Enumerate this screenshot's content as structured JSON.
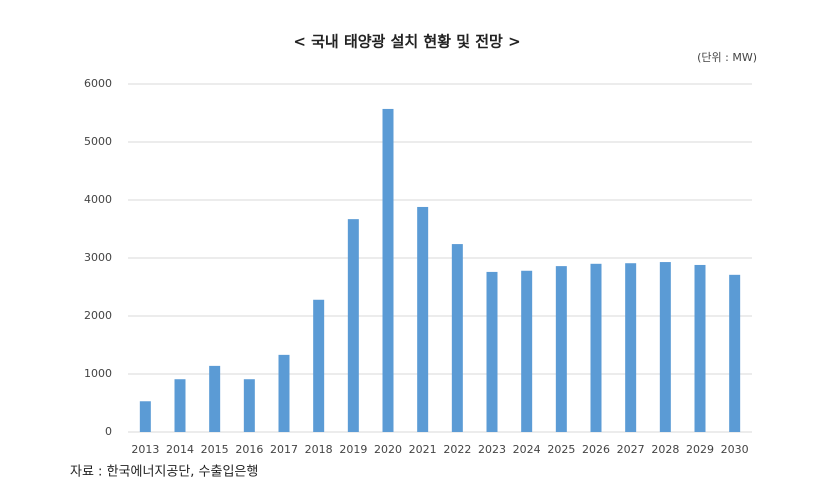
{
  "chart_data": {
    "type": "bar",
    "title": "< 국내 태양광 설치 현황 및 전망 >",
    "unit": "(단위 : MW)",
    "source": "자료 : 한국에너지공단, 수출입은행",
    "categories": [
      "2013",
      "2014",
      "2015",
      "2016",
      "2017",
      "2018",
      "2019",
      "2020",
      "2021",
      "2022",
      "2023",
      "2024",
      "2025",
      "2026",
      "2027",
      "2028",
      "2029",
      "2030"
    ],
    "values": [
      530,
      910,
      1140,
      910,
      1330,
      2280,
      3670,
      5570,
      3880,
      3240,
      2760,
      2780,
      2860,
      2900,
      2910,
      2930,
      2880,
      2710
    ],
    "color": "#5b9bd5",
    "ylim": [
      0,
      6000
    ],
    "yticks": [
      0,
      1000,
      2000,
      3000,
      4000,
      5000,
      6000
    ],
    "grid": true
  }
}
